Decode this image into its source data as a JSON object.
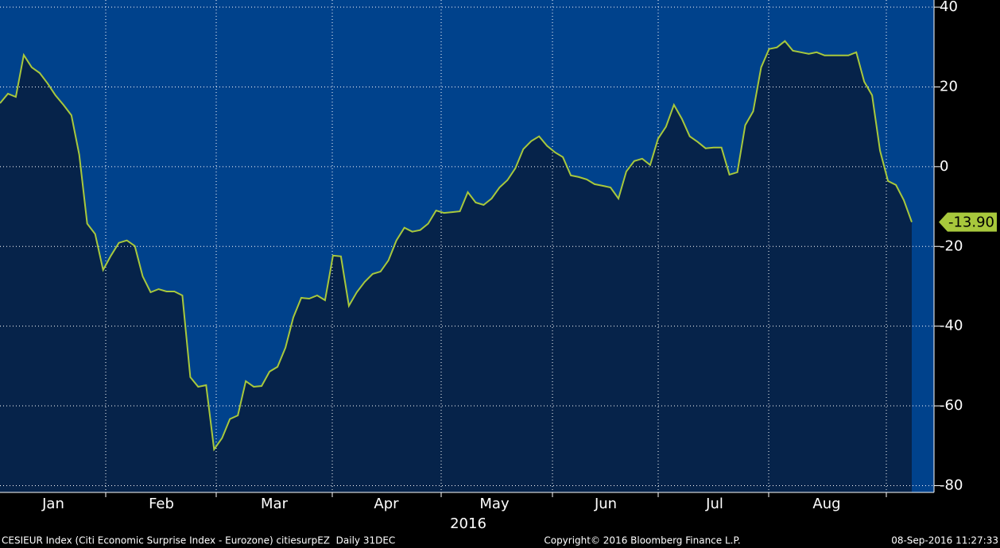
{
  "chart_data": {
    "type": "area",
    "color": "#a8c83c",
    "area_color": "#06234a",
    "background": "#00428c",
    "grid": true,
    "values": [
      15.9,
      18.3,
      17.5,
      28,
      24.9,
      23.5,
      20.9,
      17.9,
      15.5,
      12.9,
      3.0,
      -14.3,
      -16.9,
      -25.9,
      -22.3,
      -19.1,
      -18.5,
      -19.9,
      -27.5,
      -31.5,
      -30.7,
      -31.3,
      -31.3,
      -32.3,
      -52.8,
      -55.2,
      -54.8,
      -70.9,
      -68.1,
      -63.3,
      -62.4,
      -53.8,
      -55.2,
      -55.0,
      -51.4,
      -50.2,
      -45.4,
      -37.8,
      -32.9,
      -33.1,
      -32.3,
      -33.5,
      -22.3,
      -22.5,
      -34.9,
      -31.5,
      -28.9,
      -26.9,
      -26.3,
      -23.5,
      -18.5,
      -15.3,
      -16.3,
      -15.9,
      -14.3,
      -11.0,
      -11.6,
      -11.4,
      -11.2,
      -6.4,
      -9.0,
      -9.6,
      -8.0,
      -5.2,
      -3.4,
      -0.4,
      4.4,
      6.4,
      7.6,
      5.2,
      3.6,
      2.4,
      -2.2,
      -2.6,
      -3.2,
      -4.4,
      -4.8,
      -5.2,
      -8.0,
      -1.2,
      1.4,
      2.0,
      0.4,
      7.0,
      10.0,
      15.5,
      12.0,
      7.6,
      6.2,
      4.6,
      4.8,
      4.8,
      -2.0,
      -1.4,
      10.4,
      13.9,
      24.9,
      29.5,
      29.9,
      31.5,
      29.1,
      28.7,
      28.3,
      28.7,
      27.9,
      27.9,
      27.9,
      27.9,
      28.7,
      21.3,
      17.9,
      4.0,
      -3.6,
      -4.6,
      -8.4,
      -13.9
    ],
    "value_labels": [
      null,
      null,
      null,
      null,
      null,
      null,
      null,
      null,
      null,
      null,
      null,
      null,
      null,
      null,
      null,
      null,
      null,
      null,
      null,
      null,
      null,
      null,
      null,
      null,
      null,
      null,
      null,
      null,
      null,
      null,
      null,
      null,
      null,
      null,
      null,
      null,
      null,
      null,
      null,
      null,
      null,
      null,
      null,
      null,
      null,
      null,
      null,
      null,
      null,
      null,
      null,
      null,
      null,
      null,
      null,
      null,
      null,
      null,
      null,
      null,
      null,
      null,
      null,
      null,
      null,
      null,
      null,
      null,
      null,
      null,
      null,
      null,
      null,
      null,
      null,
      null,
      null,
      null,
      null,
      null,
      null,
      null,
      null,
      null,
      null,
      null,
      null,
      null,
      null,
      null,
      null,
      null,
      null,
      null,
      null,
      null,
      null,
      null,
      null,
      null,
      null,
      null,
      null,
      null,
      null,
      null,
      null,
      null,
      null,
      null,
      null,
      null,
      null,
      null,
      null,
      "-13.90"
    ],
    "ylim": [
      -81.7,
      41.8
    ],
    "yticks": [
      40,
      20,
      0,
      -20,
      -40,
      -60,
      -80
    ],
    "x_month_labels": [
      "Jan",
      "Feb",
      "Mar",
      "Apr",
      "May",
      "Jun",
      "Jul",
      "Aug"
    ],
    "x_year_label": "2016",
    "footer": {
      "description": "CESIEUR Index (Citi Economic Surprise Index - Eurozone) citiesurpEZ  Daily 31DEC",
      "copyright": "Copyright© 2016 Bloomberg Finance L.P.",
      "timestamp": "08-Sep-2016 11:27:33"
    }
  }
}
